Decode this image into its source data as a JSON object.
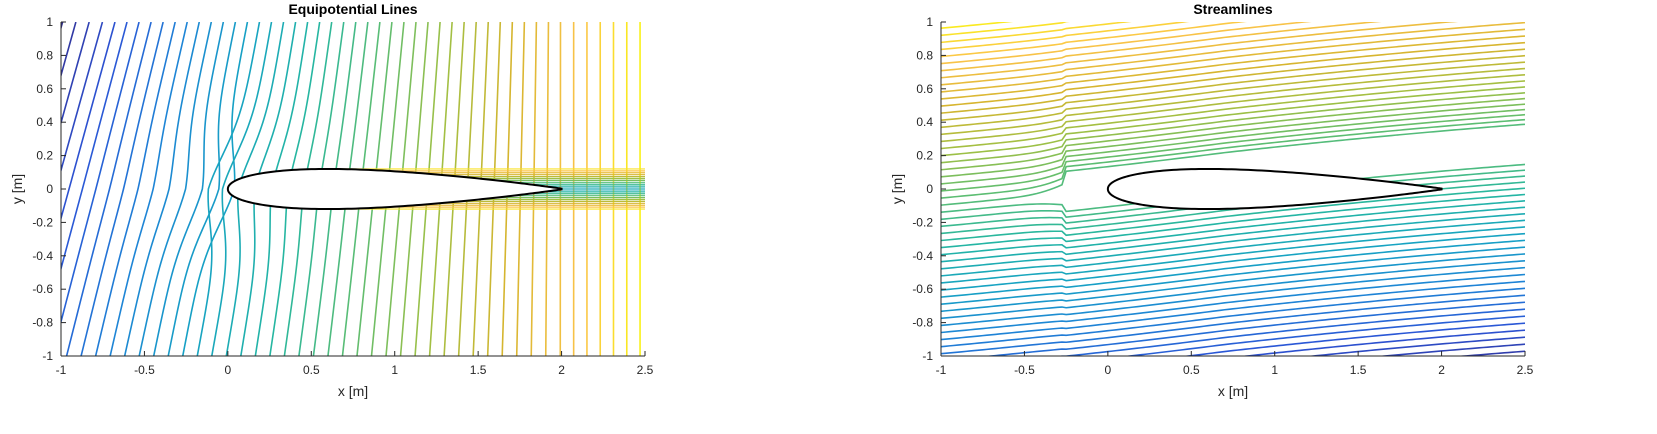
{
  "chart_data": [
    {
      "type": "contour",
      "title": "Equipotential Lines",
      "xlabel": "x [m]",
      "ylabel": "y [m]",
      "xlim": [
        -1,
        2.5
      ],
      "ylim": [
        -1,
        1
      ],
      "xticks": [
        "-1",
        "-0.5",
        "0",
        "0.5",
        "1",
        "1.5",
        "2",
        "2.5"
      ],
      "yticks": [
        "-1",
        "-0.8",
        "-0.6",
        "-0.4",
        "-0.2",
        "0",
        "0.2",
        "0.4",
        "0.6",
        "0.8",
        "1"
      ],
      "colormap": "parula",
      "level_count": 50,
      "wake_band_y": [
        -0.12,
        0.12
      ],
      "airfoil": {
        "leading_edge_x": 0,
        "trailing_edge_x": 2,
        "max_half_thickness": 0.12,
        "max_thickness_x": 0.6
      },
      "grid": false
    },
    {
      "type": "contour",
      "title": "Streamlines",
      "xlabel": "x [m]",
      "ylabel": "y [m]",
      "xlim": [
        -1,
        2.5
      ],
      "ylim": [
        -1,
        1
      ],
      "xticks": [
        "-1",
        "-0.5",
        "0",
        "0.5",
        "1",
        "1.5",
        "2",
        "2.5"
      ],
      "yticks": [
        "-1",
        "-0.8",
        "-0.6",
        "-0.4",
        "-0.2",
        "0",
        "0.2",
        "0.4",
        "0.6",
        "0.8",
        "1"
      ],
      "colormap": "parula",
      "level_count": 60,
      "freestream_slope": 0.12,
      "airfoil": {
        "leading_edge_x": 0,
        "trailing_edge_x": 2,
        "max_half_thickness": 0.12,
        "max_thickness_x": 0.6
      },
      "grid": false
    }
  ],
  "colors": {
    "parula": [
      "#352a87",
      "#2b54d6",
      "#1e84d6",
      "#16a2c4",
      "#24b6a3",
      "#5abd74",
      "#a0c044",
      "#d6b52f",
      "#fbc44a",
      "#f9fb0e"
    ],
    "axis": "#262626",
    "airfoil_outline": "#000000",
    "airfoil_fill": "#ffffff"
  }
}
